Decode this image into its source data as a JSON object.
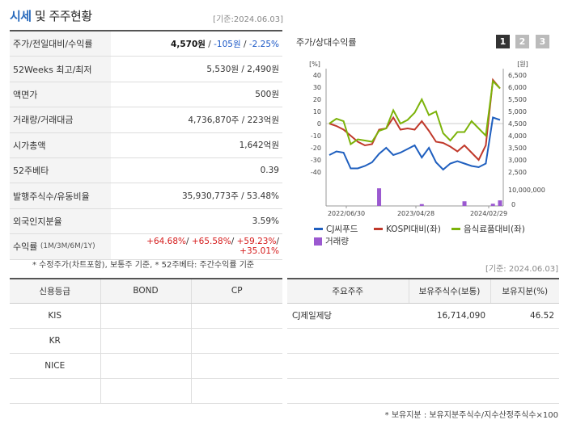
{
  "header": {
    "title_main": "시세",
    "title_rest": " 및 주주현황",
    "date": "[기준:2024.06.03]"
  },
  "info": {
    "rows": [
      {
        "label": "주가/전일대비/수익률"
      },
      {
        "label": "52Weeks 최고/최저",
        "value": "5,530원 / 2,490원"
      },
      {
        "label": "액면가",
        "value": "500원"
      },
      {
        "label": "거래량/거래대금",
        "value": "4,736,870주 / 223억원"
      },
      {
        "label": "시가총액",
        "value": "1,642억원"
      },
      {
        "label": "52주베타",
        "value": "0.39"
      },
      {
        "label": "발행주식수/유동비율",
        "value": "35,930,773주 / 53.48%"
      },
      {
        "label": "외국인지분율",
        "value": "3.59%"
      }
    ],
    "price": "4,570원",
    "change": "-105원",
    "rate": "-2.25%",
    "sep": " / ",
    "returns_label": "수익률",
    "returns_periods": "(1M/3M/6M/1Y)",
    "returns": [
      "+64.68%",
      "+65.58%",
      "+59.23%",
      "+35.01%"
    ]
  },
  "footnote": "* 수정주가(차트포함), 보통주 기준, * 52주베타: 주간수익률 기준",
  "chart_panel": {
    "title": "주가/상대수익률",
    "period_buttons": [
      "1",
      "2",
      "3"
    ],
    "active_button": "1",
    "accent_colors": {
      "active": "#333333",
      "inactive": "#bbbbbb"
    }
  },
  "chart_data": {
    "type": "line",
    "left_axis_label": "[%]",
    "right_axis_label": "[원]",
    "left_ticks": [
      "40",
      "30",
      "20",
      "10",
      "0",
      "-10",
      "-20",
      "-30",
      "-40"
    ],
    "right_ticks": [
      "6,500",
      "6,000",
      "5,500",
      "5,000",
      "4,500",
      "4,000",
      "3,500",
      "3,000",
      "2,500"
    ],
    "volume_tick": "10,000,000",
    "volume_zero": "0",
    "x_ticks": [
      "2022/06/30",
      "2023/04/28",
      "2024/02/29"
    ],
    "series": [
      {
        "name": "CJ씨푸드",
        "axis": "left",
        "color": "#1f5fbf",
        "values": [
          -26,
          -23,
          -24,
          -37,
          -37,
          -35,
          -32,
          -25,
          -20,
          -26,
          -24,
          -21,
          -18,
          -28,
          -20,
          -32,
          -38,
          -33,
          -31,
          -33,
          -35,
          -36,
          -33,
          5,
          3
        ]
      },
      {
        "name": "KOSPI대비(좌)",
        "axis": "left",
        "color": "#c0392b",
        "values": [
          0,
          -2,
          -5,
          -10,
          -15,
          -18,
          -17,
          -5,
          -4,
          5,
          -5,
          -4,
          -5,
          2,
          -6,
          -15,
          -16,
          -19,
          -23,
          -18,
          -24,
          -30,
          -18,
          36,
          29
        ]
      },
      {
        "name": "음식료품대비(좌)",
        "axis": "left",
        "color": "#7cb30a",
        "values": [
          0,
          4,
          2,
          -17,
          -13,
          -14,
          -15,
          -6,
          -4,
          11,
          0,
          3,
          9,
          20,
          7,
          10,
          -8,
          -14,
          -7,
          -7,
          2,
          -4,
          -10,
          35,
          29
        ]
      },
      {
        "name": "거래량",
        "axis": "volume",
        "color": "#9b59d0",
        "values": [
          0,
          0,
          0,
          0,
          0,
          0,
          0,
          9.5,
          0,
          0,
          0,
          0,
          0,
          1,
          0,
          0,
          0,
          0,
          0,
          2.5,
          0,
          0,
          0,
          1.2,
          3
        ]
      }
    ],
    "ylim_left": [
      -40,
      40
    ],
    "volume_max": 10000000
  },
  "date2": "[기준: 2024.06.03]",
  "credit": {
    "headers": [
      "신용등급",
      "BOND",
      "CP"
    ],
    "rows": [
      [
        "KIS",
        "",
        ""
      ],
      [
        "KR",
        "",
        ""
      ],
      [
        "NICE",
        "",
        ""
      ],
      [
        "",
        "",
        ""
      ]
    ]
  },
  "holders": {
    "headers": [
      "주요주주",
      "보유주식수(보통)",
      "보유지분(%)"
    ],
    "rows": [
      [
        "CJ제일제당",
        "16,714,090",
        "46.52"
      ],
      [
        "",
        "",
        ""
      ],
      [
        "",
        "",
        ""
      ],
      [
        "",
        "",
        ""
      ]
    ]
  },
  "footnote2": "* 보유지분 : 보유지분주식수/지수산정주식수×100"
}
